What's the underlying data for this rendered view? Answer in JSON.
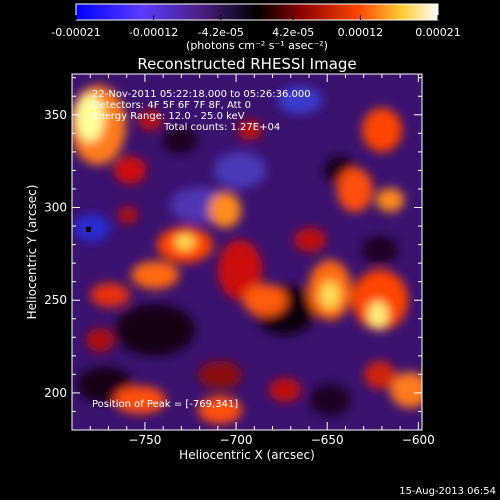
{
  "chart_data": {
    "type": "heatmap",
    "title": "Reconstructed RHESSI Image",
    "xlabel": "Heliocentric X (arcsec)",
    "ylabel": "Heliocentric Y (arcsec)",
    "xlim": [
      -790,
      -598
    ],
    "ylim": [
      180,
      372
    ],
    "x_ticks": [
      -750,
      -700,
      -650,
      -600
    ],
    "y_ticks": [
      200,
      250,
      300,
      350
    ],
    "colorbar": {
      "min": -0.00021,
      "max": 0.00021,
      "tick_labels": [
        "-0.00021",
        "-0.00012",
        "-4.2e-05",
        "4.2e-05",
        "0.00012",
        "0.00021"
      ],
      "tick_values": [
        -0.00021,
        -0.00012,
        -4.2e-05,
        4.2e-05,
        0.00012,
        0.00021
      ],
      "unit_label": "(photons cm⁻² s⁻¹ asec⁻²)",
      "colormap": [
        "#0000ff",
        "#6633ff",
        "#5a1f8a",
        "#000000",
        "#8b0000",
        "#ff4500",
        "#ffff66",
        "#ffffff"
      ]
    },
    "annotations": [
      "22-Nov-2011 05:22:18.000 to 05:26:36.000",
      "Detectors: 4F 5F 6F 7F 8F, Att 0",
      "Energy Range: 12.0 - 25.0 keV",
      "Total counts: 1.27E+04",
      "Position of Peak = [-769,341]"
    ],
    "peak_position": [
      -769,
      341
    ],
    "timestamp": "15-Aug-2013 06:54"
  }
}
